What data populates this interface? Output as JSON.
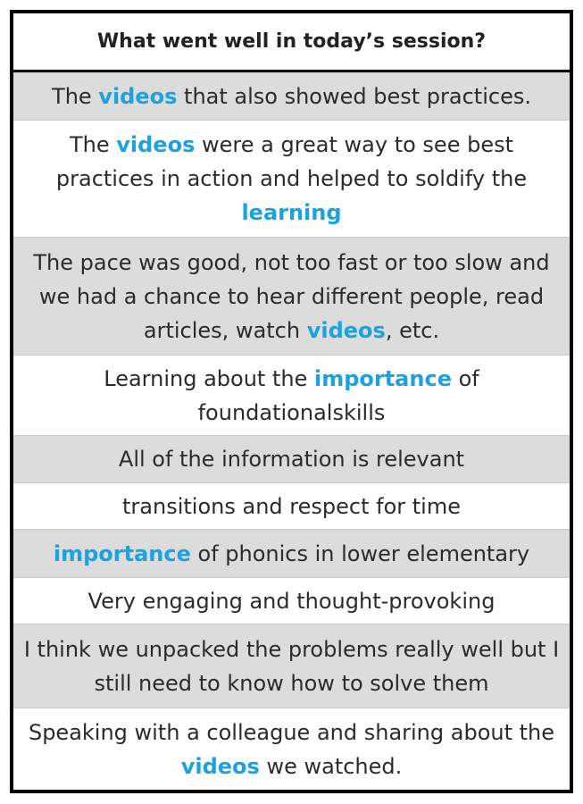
{
  "header": {
    "title": "What went well in today’s session?"
  },
  "colors": {
    "highlight": "#1aa3e0",
    "shaded_row": "#dcdcdc",
    "border": "#000000"
  },
  "rows": [
    {
      "segments": [
        {
          "text": "The ",
          "hl": false
        },
        {
          "text": "videos",
          "hl": true
        },
        {
          "text": " that also showed best practices.",
          "hl": false
        }
      ]
    },
    {
      "segments": [
        {
          "text": "The ",
          "hl": false
        },
        {
          "text": "videos",
          "hl": true
        },
        {
          "text": " were a great way to see best practices in action and helped to soldify the ",
          "hl": false
        },
        {
          "text": "learning",
          "hl": true
        }
      ]
    },
    {
      "segments": [
        {
          "text": "The pace was good, not too fast or too slow and we had a chance to hear different people, read articles, watch ",
          "hl": false
        },
        {
          "text": "videos",
          "hl": true
        },
        {
          "text": ", etc.",
          "hl": false
        }
      ]
    },
    {
      "segments": [
        {
          "text": "Learning about the ",
          "hl": false
        },
        {
          "text": "importance",
          "hl": true
        },
        {
          "text": " of foundationalskills",
          "hl": false
        }
      ]
    },
    {
      "segments": [
        {
          "text": "All of the information is relevant",
          "hl": false
        }
      ]
    },
    {
      "segments": [
        {
          "text": "transitions and respect for time",
          "hl": false
        }
      ]
    },
    {
      "segments": [
        {
          "text": "importance",
          "hl": true
        },
        {
          "text": " of phonics in lower elementary",
          "hl": false
        }
      ]
    },
    {
      "segments": [
        {
          "text": "Very engaging and thought-provoking",
          "hl": false
        }
      ]
    },
    {
      "segments": [
        {
          "text": "I think we unpacked the problems really well but I still need to know how to solve them",
          "hl": false
        }
      ]
    },
    {
      "segments": [
        {
          "text": "Speaking with a colleague and sharing about the ",
          "hl": false
        },
        {
          "text": "videos",
          "hl": true
        },
        {
          "text": " we watched.",
          "hl": false
        }
      ]
    }
  ]
}
